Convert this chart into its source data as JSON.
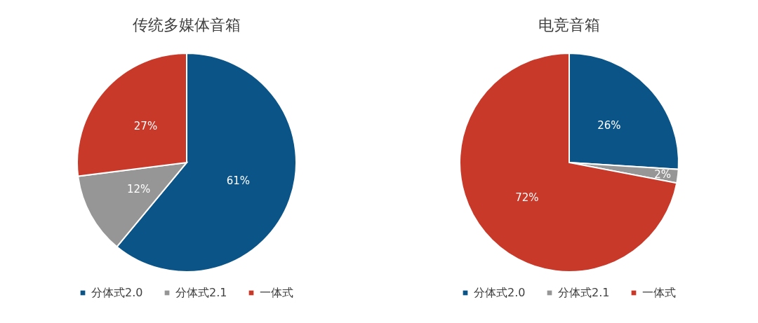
{
  "chart_data": [
    {
      "type": "pie",
      "title": "传统多媒体音箱",
      "categories": [
        "分体式2.0",
        "分体式2.1",
        "一体式"
      ],
      "values": [
        61,
        12,
        27
      ],
      "colors": [
        "#0b5487",
        "#969696",
        "#c8392a"
      ],
      "value_labels": [
        "61%",
        "12%",
        "27%"
      ],
      "legend": "bottom"
    },
    {
      "type": "pie",
      "title": "电竞音箱",
      "categories": [
        "分体式2.0",
        "分体式2.1",
        "一体式"
      ],
      "values": [
        26,
        2,
        72
      ],
      "colors": [
        "#0b5487",
        "#969696",
        "#c8392a"
      ],
      "value_labels": [
        "26%",
        "2%",
        "72%"
      ],
      "legend": "bottom"
    }
  ]
}
